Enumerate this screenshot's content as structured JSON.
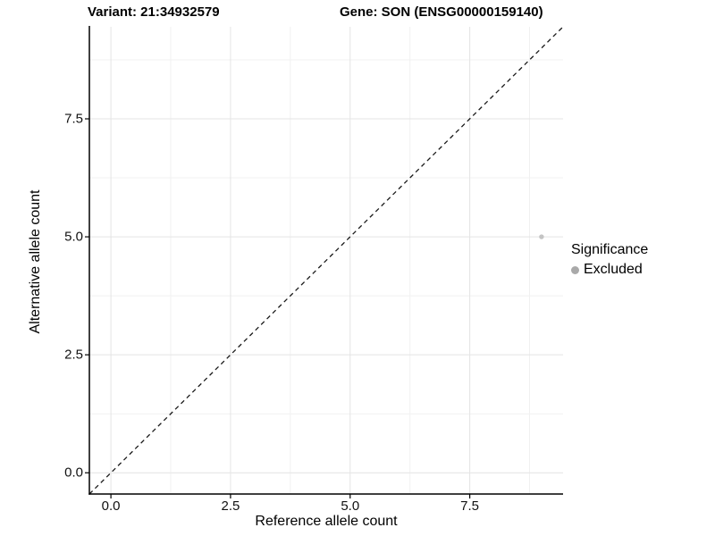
{
  "chart_data": {
    "type": "scatter",
    "title_left": "Variant: 21:34932579",
    "title_right": "Gene: SON (ENSG00000159140)",
    "xlabel": "Reference allele count",
    "ylabel": "Alternative allele count",
    "xlim": [
      -0.45,
      9.45
    ],
    "ylim": [
      -0.45,
      9.45
    ],
    "x_ticks": [
      0,
      2.5,
      5,
      7.5
    ],
    "x_tick_labels": [
      "0.0",
      "2.5",
      "5.0",
      "7.5"
    ],
    "y_ticks": [
      0,
      2.5,
      5,
      7.5
    ],
    "y_tick_labels": [
      "0.0",
      "2.5",
      "5.0",
      "7.5"
    ],
    "x_minor_ticks": [
      1.25,
      3.75,
      6.25,
      8.75
    ],
    "y_minor_ticks": [
      1.25,
      3.75,
      6.25,
      8.75
    ],
    "grid": {
      "on": true,
      "major_color": "#e4e4e4",
      "minor_color": "#f1f1f1"
    },
    "reference_line": {
      "kind": "identity y=x",
      "style": "dashed",
      "color": "#1a1a1a"
    },
    "series": [
      {
        "name": "Excluded",
        "color": "#c4c4c4",
        "point_radius": 2.7,
        "points": [
          {
            "x": 9,
            "y": 5
          }
        ]
      }
    ],
    "legend": {
      "title": "Significance",
      "position": "right-middle",
      "entries": [
        {
          "label": "Excluded",
          "color": "#a9a9a9"
        }
      ]
    },
    "axis_color": "#000000",
    "text_color": "#000000",
    "background": "#ffffff"
  }
}
